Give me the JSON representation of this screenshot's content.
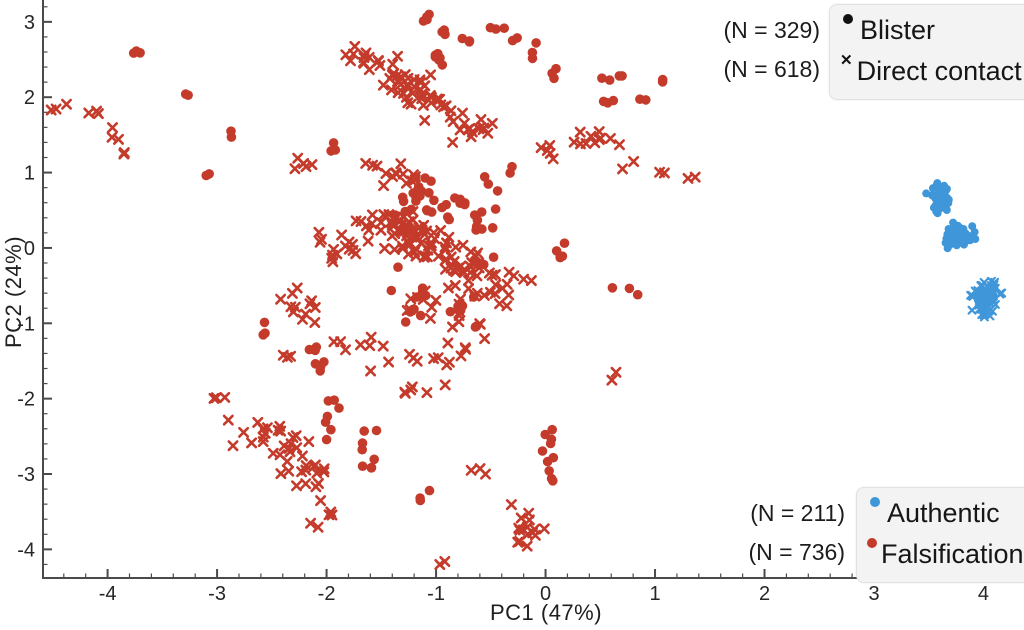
{
  "figure": {
    "background": "#ffffff"
  },
  "chart_data": {
    "type": "scatter",
    "title": "",
    "xlabel": "PC1 (47%)",
    "ylabel": "PC2 (24%)",
    "xlim": [
      -4.59,
      4.37
    ],
    "ylim": [
      -4.38,
      3.29
    ],
    "xticks": [
      -4,
      -3,
      -2,
      -1,
      0,
      1,
      2,
      3,
      4
    ],
    "yticks": [
      -4,
      -3,
      -2,
      -1,
      0,
      1,
      2,
      3
    ],
    "minor_tick_step": 0.2,
    "grid": false,
    "axis_color": "#4a4a4a",
    "tick_label_color": "#262626",
    "legend_shape": {
      "position": "top-right",
      "entries": [
        {
          "n_label": "(N = 329)",
          "marker": "dot",
          "label": "Blister"
        },
        {
          "n_label": "(N = 618)",
          "marker": "x",
          "label": "Direct contact"
        }
      ],
      "marker_color": "#111111"
    },
    "legend_color": {
      "position": "bottom-right",
      "entries": [
        {
          "n_label": "(N = 211)",
          "color": "#3f96d8",
          "label": "Authentic"
        },
        {
          "n_label": "(N = 736)",
          "color": "#c43b2b",
          "label": "Falsification"
        }
      ]
    },
    "series": [
      {
        "name": "Falsification",
        "color": "#c43b2b",
        "n": 736,
        "clusters": [
          [
            "x",
            -4.33,
            1.84,
            0.08,
            0.05,
            4
          ],
          [
            "x",
            -4.1,
            1.79,
            0.02,
            0.02,
            2
          ],
          [
            "x",
            -3.99,
            1.56,
            0.05,
            0.09,
            3
          ],
          [
            "x",
            -3.8,
            1.29,
            0.03,
            0.03,
            2
          ],
          [
            "x",
            -2.95,
            -2.0,
            0.09,
            0.02,
            3
          ],
          [
            "x",
            -2.23,
            1.1,
            0.07,
            0.06,
            5
          ],
          [
            "x",
            -1.62,
            1.08,
            0.04,
            0.04,
            3
          ],
          [
            "x",
            -2.35,
            -1.45,
            0.05,
            0.04,
            3
          ],
          [
            "x",
            -1.9,
            -0.03,
            0.13,
            0.12,
            16
          ],
          [
            "x",
            -2.22,
            -0.72,
            0.15,
            0.17,
            12
          ],
          [
            "x",
            -1.28,
            0.95,
            0.12,
            0.14,
            12
          ],
          [
            "x",
            -1.75,
            -1.25,
            0.1,
            0.1,
            6
          ],
          [
            "x",
            -0.95,
            -0.95,
            0.22,
            0.18,
            22
          ],
          [
            "x",
            -1.15,
            -1.55,
            0.18,
            0.12,
            12
          ],
          [
            "x",
            -1.18,
            -1.93,
            0.1,
            0.04,
            4
          ],
          [
            "x",
            -0.94,
            -4.18,
            0.02,
            0.02,
            2
          ],
          [
            "x",
            -1.95,
            -3.5,
            0.05,
            0.04,
            3
          ],
          [
            "x",
            -2.14,
            -3.66,
            0.04,
            0.04,
            2
          ],
          [
            "x",
            -0.18,
            -3.68,
            0.09,
            0.2,
            16
          ],
          [
            "x",
            -0.54,
            -2.92,
            0.06,
            0.05,
            3
          ],
          [
            "x",
            0.63,
            -1.68,
            0.04,
            0.03,
            2
          ],
          [
            "x",
            0.3,
            1.44,
            0.22,
            0.11,
            12
          ],
          [
            "x",
            0.03,
            1.25,
            0.05,
            0.07,
            4
          ],
          [
            "x",
            0.78,
            1.08,
            0.04,
            0.03,
            2
          ],
          [
            "x",
            1.06,
            1.04,
            0.03,
            0.03,
            2
          ],
          [
            "x",
            1.33,
            0.93,
            0.03,
            0.03,
            2
          ],
          [
            "c",
            -3.73,
            2.57,
            0.06,
            0.04,
            3
          ],
          [
            "c",
            -3.32,
            2.01,
            0.04,
            0.04,
            2
          ],
          [
            "c",
            -2.88,
            1.53,
            0.03,
            0.03,
            2
          ],
          [
            "c",
            -3.09,
            0.97,
            0.03,
            0.04,
            2
          ],
          [
            "c",
            -1.94,
            1.33,
            0.05,
            0.04,
            3
          ],
          [
            "c",
            -1.06,
            3.07,
            0.07,
            0.05,
            4
          ],
          [
            "c",
            -0.95,
            2.86,
            0.05,
            0.04,
            3
          ],
          [
            "c",
            -0.76,
            2.73,
            0.04,
            0.04,
            3
          ],
          [
            "c",
            -1.02,
            2.52,
            0.05,
            0.06,
            6
          ],
          [
            "c",
            -0.45,
            2.9,
            0.04,
            0.04,
            3
          ],
          [
            "c",
            -0.3,
            2.74,
            0.03,
            0.03,
            2
          ],
          [
            "c",
            -0.12,
            2.58,
            0.04,
            0.05,
            3
          ],
          [
            "c",
            0.1,
            2.33,
            0.05,
            0.04,
            3
          ],
          [
            "c",
            0.52,
            2.22,
            0.03,
            0.03,
            2
          ],
          [
            "c",
            0.68,
            2.28,
            0.03,
            0.03,
            2
          ],
          [
            "c",
            1.07,
            2.19,
            0.03,
            0.03,
            2
          ],
          [
            "c",
            0.55,
            1.95,
            0.05,
            0.04,
            3
          ],
          [
            "c",
            0.9,
            1.95,
            0.04,
            0.03,
            2
          ],
          [
            "c",
            -0.33,
            1.04,
            0.03,
            0.03,
            2
          ],
          [
            "c",
            -1.13,
            0.66,
            0.13,
            0.22,
            24
          ],
          [
            "c",
            -0.8,
            0.55,
            0.07,
            0.09,
            8
          ],
          [
            "c",
            -0.55,
            0.33,
            0.08,
            0.25,
            12
          ],
          [
            "c",
            0.12,
            0.0,
            0.05,
            0.09,
            4
          ],
          [
            "c",
            -0.54,
            -0.12,
            0.05,
            0.05,
            3
          ],
          [
            "c",
            0.75,
            -0.6,
            0.06,
            0.07,
            3
          ],
          [
            "c",
            -1.2,
            -0.5,
            0.09,
            0.22,
            10
          ],
          [
            "c",
            -0.75,
            -0.78,
            0.08,
            0.08,
            6
          ],
          [
            "c",
            -0.63,
            -1.05,
            0.03,
            0.03,
            2
          ],
          [
            "c",
            -2.57,
            -1.1,
            0.04,
            0.07,
            3
          ],
          [
            "c",
            -2.1,
            -1.33,
            0.04,
            0.05,
            3
          ],
          [
            "c",
            -2.05,
            -1.55,
            0.05,
            0.05,
            3
          ],
          [
            "c",
            -1.93,
            -2.15,
            0.06,
            0.18,
            8
          ],
          [
            "c",
            -1.63,
            -2.6,
            0.07,
            0.12,
            6
          ],
          [
            "c",
            -1.7,
            -2.95,
            0.04,
            0.04,
            2
          ],
          [
            "c",
            -1.15,
            -3.25,
            0.05,
            0.05,
            3
          ],
          [
            "c",
            0.02,
            -2.75,
            0.04,
            0.2,
            10
          ]
        ],
        "bands": [
          [
            "x",
            -1.72,
            2.62,
            -0.95,
            1.92,
            0.08,
            48
          ],
          [
            "x",
            -1.3,
            2.05,
            -0.5,
            1.52,
            0.09,
            26
          ],
          [
            "x",
            -1.55,
            0.45,
            -0.35,
            -0.55,
            0.14,
            120
          ],
          [
            "x",
            -2.6,
            -2.25,
            -2.12,
            -3.1,
            0.11,
            40
          ]
        ]
      },
      {
        "name": "Authentic",
        "color": "#3f96d8",
        "n": 211,
        "clusters": [
          [
            "c",
            3.6,
            0.64,
            0.04,
            0.09,
            45
          ],
          [
            "c",
            3.77,
            0.15,
            0.06,
            0.07,
            60
          ],
          [
            "x",
            4.02,
            -0.65,
            0.06,
            0.11,
            80
          ]
        ],
        "bands": []
      }
    ]
  }
}
